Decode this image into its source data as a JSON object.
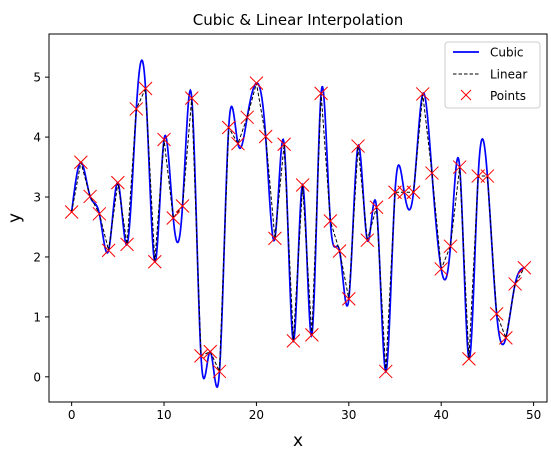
{
  "chart_data": {
    "type": "line",
    "title": "Cubic & Linear Interpolation",
    "xlabel": "x",
    "ylabel": "y",
    "xlim": [
      -2.45,
      51.45
    ],
    "ylim": [
      -0.42,
      5.72
    ],
    "xticks": [
      0,
      10,
      20,
      30,
      40,
      50
    ],
    "yticks": [
      0,
      1,
      2,
      3,
      4,
      5
    ],
    "grid": false,
    "legend_position": "top-right",
    "x": [
      0,
      1,
      2,
      3,
      4,
      5,
      6,
      7,
      8,
      9,
      10,
      11,
      12,
      13,
      14,
      15,
      16,
      17,
      18,
      19,
      20,
      21,
      22,
      23,
      24,
      25,
      26,
      27,
      28,
      29,
      30,
      31,
      32,
      33,
      34,
      35,
      36,
      37,
      38,
      39,
      40,
      41,
      42,
      43,
      44,
      45,
      46,
      47,
      48,
      49
    ],
    "y": [
      2.75,
      3.58,
      3.01,
      2.72,
      2.11,
      3.24,
      2.21,
      4.47,
      4.81,
      1.92,
      3.96,
      2.65,
      2.85,
      4.65,
      0.35,
      0.42,
      0.09,
      4.16,
      3.89,
      4.33,
      4.9,
      4.01,
      2.31,
      3.88,
      0.6,
      3.2,
      0.7,
      4.73,
      2.6,
      2.1,
      1.3,
      3.85,
      2.28,
      2.83,
      0.09,
      3.08,
      3.08,
      3.08,
      4.72,
      3.4,
      1.8,
      2.18,
      3.5,
      0.3,
      3.35,
      3.35,
      1.05,
      0.65,
      1.55,
      1.82
    ],
    "series": [
      {
        "name": "Cubic",
        "style": "solid",
        "color": "#0000ff"
      },
      {
        "name": "Linear",
        "style": "dashed",
        "color": "#000000"
      },
      {
        "name": "Points",
        "style": "marker-x",
        "color": "#ff0000"
      }
    ]
  }
}
